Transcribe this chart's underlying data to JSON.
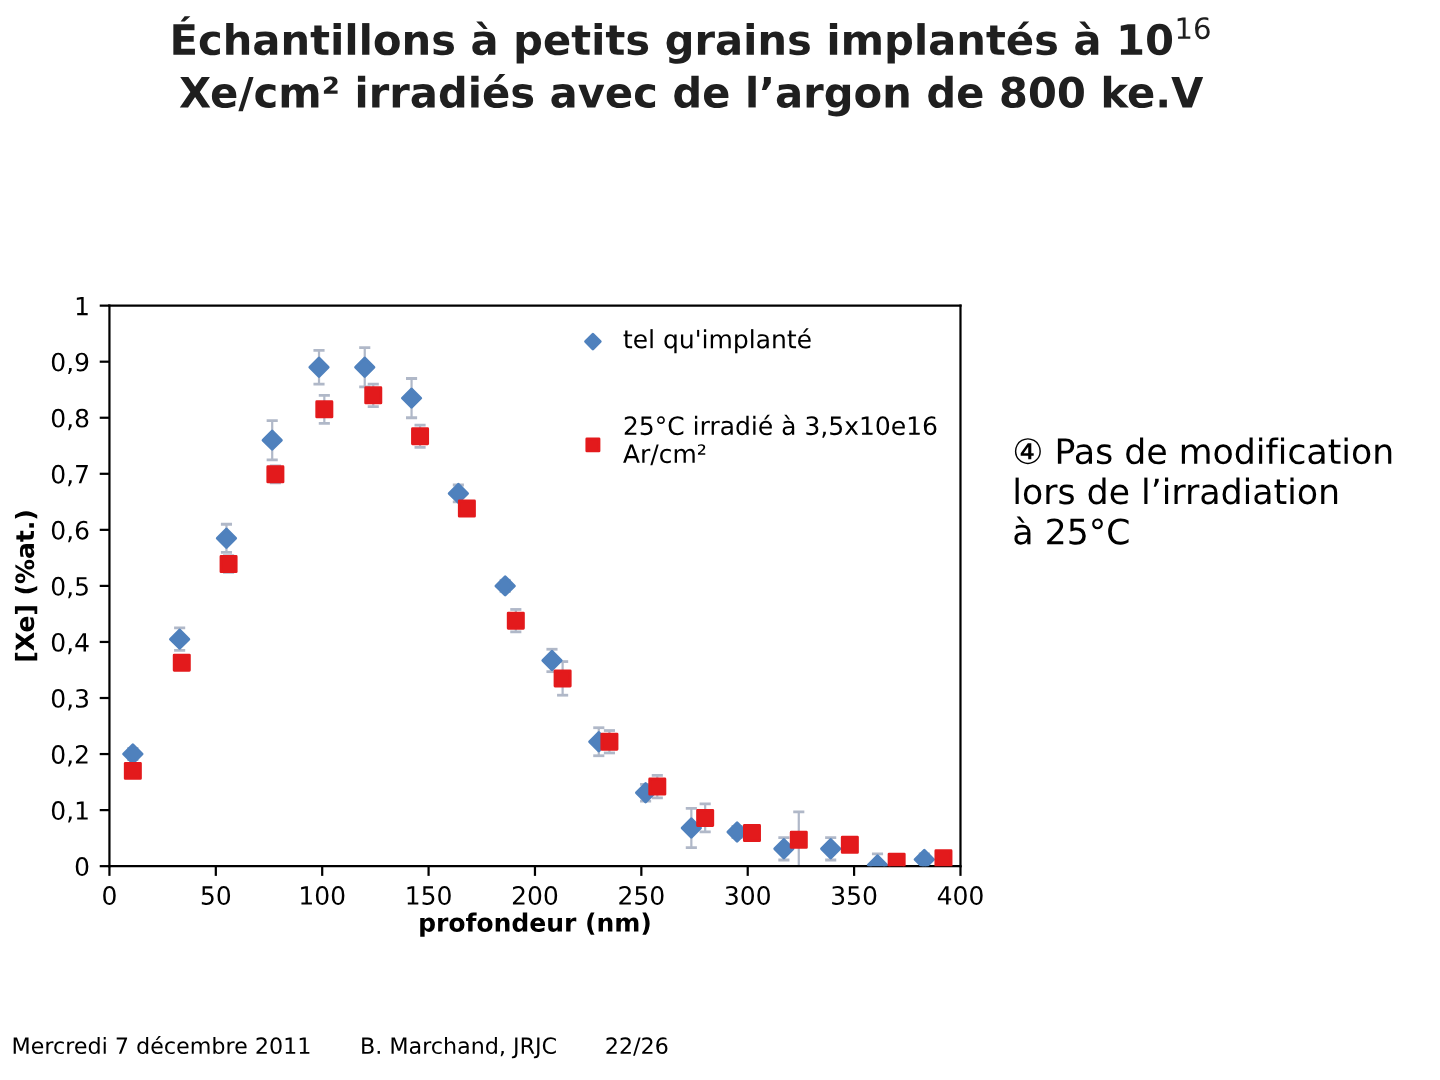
{
  "chart_data": {
    "type": "scatter",
    "title": "Échantillons à petits grains implantés à 10$^{16}$\nXe/cm² irradiés avec de l’argon de 800 ke.V",
    "xlabel": "profondeur (nm)",
    "ylabel": "[Xe] (%at.)",
    "xlim": [
      0,
      400
    ],
    "ylim": [
      0,
      1
    ],
    "xticks": [
      0,
      50,
      100,
      150,
      200,
      250,
      300,
      350,
      400
    ],
    "yticks": [
      0,
      {
        "value": 0.1,
        "label": "0,1"
      },
      {
        "value": 0.2,
        "label": "0,2"
      },
      {
        "value": 0.3,
        "label": "0,3"
      },
      {
        "value": 0.4,
        "label": "0,4"
      },
      {
        "value": 0.5,
        "label": "0,5"
      },
      {
        "value": 0.6,
        "label": "0,6"
      },
      {
        "value": 0.7,
        "label": "0,7"
      },
      {
        "value": 0.8,
        "label": "0,8"
      },
      {
        "value": 0.9,
        "label": "0,9"
      },
      1
    ],
    "grid": false,
    "legend": "top right",
    "series": [
      {
        "name": "tel qu'implanté",
        "color": "#4f81bd",
        "marker": "diamond",
        "x": [
          11,
          33,
          55,
          76.5,
          98.5,
          120,
          142,
          164,
          186,
          208,
          230,
          252,
          273.5,
          295,
          317,
          339,
          361,
          383
        ],
        "values": [
          0.2,
          0.405,
          0.585,
          0.76,
          0.89,
          0.89,
          0.835,
          0.665,
          0.5,
          0.367,
          0.222,
          0.131,
          0.068,
          0.061,
          0.031,
          0.031,
          0.002,
          0.012
        ],
        "errors": [
          0.01,
          0.02,
          0.025,
          0.035,
          0.03,
          0.035,
          0.035,
          0.015,
          0.01,
          0.02,
          0.025,
          0.015,
          0.035,
          0.01,
          0.02,
          0.02,
          0.02,
          0.01
        ]
      },
      {
        "name": "25°C irradié à 3,5x10e16\nAr/cm²",
        "color": "#e31a1c",
        "marker": "square",
        "x": [
          11,
          34,
          56,
          78,
          101,
          124,
          146,
          168,
          191,
          213,
          235,
          257.5,
          280,
          302,
          324,
          348,
          370,
          392
        ],
        "values": [
          0.17,
          0.363,
          0.539,
          0.699,
          0.815,
          0.84,
          0.767,
          0.638,
          0.438,
          0.335,
          0.222,
          0.142,
          0.086,
          0.059,
          0.047,
          0.038,
          0.008,
          0.014
        ],
        "errors": [
          0.01,
          null,
          0.015,
          0.015,
          0.025,
          0.02,
          0.02,
          0.01,
          0.02,
          0.03,
          0.02,
          0.02,
          0.025,
          null,
          0.05,
          null,
          0.01,
          0.01
        ]
      }
    ],
    "annotations": [
      "④ Pas de modification\nlors de l’irradiation\nà 25°C",
      "Mercredi 7 décembre 2011",
      "B. Marchand, JRJC",
      "22/26"
    ]
  }
}
